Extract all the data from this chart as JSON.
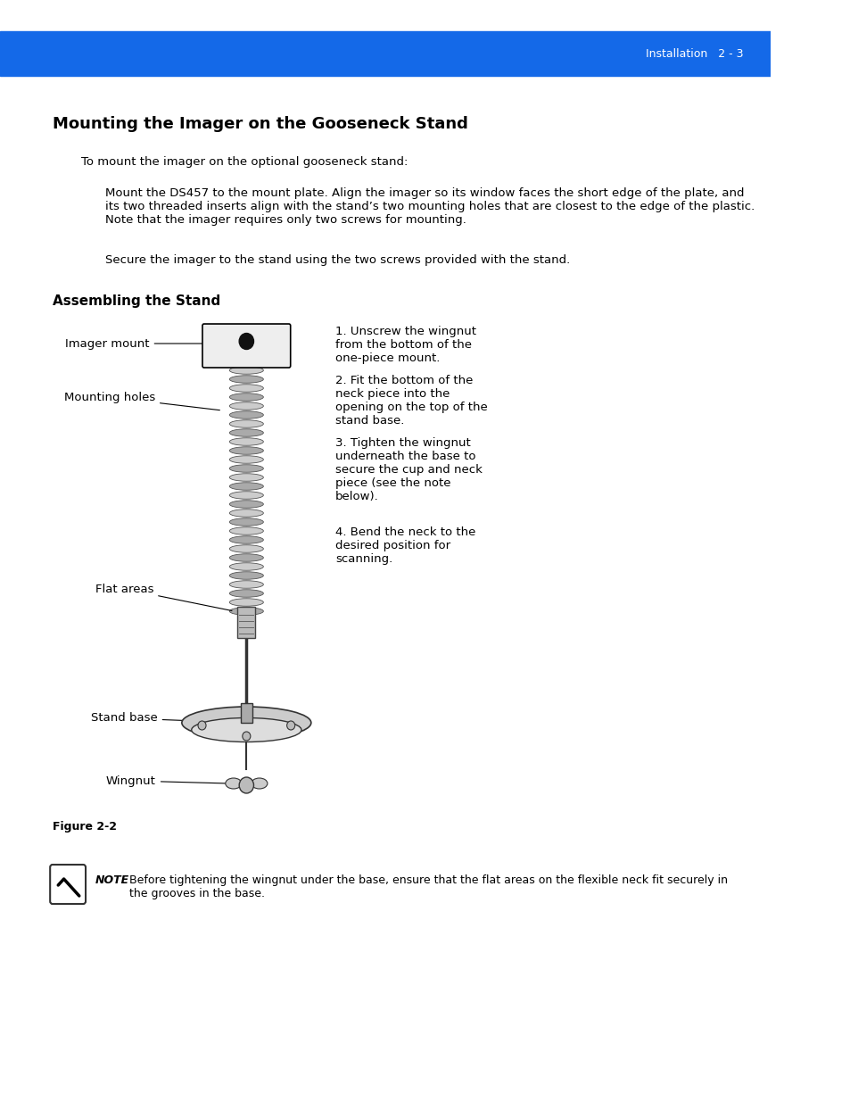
{
  "header_bar_color": "#1469E8",
  "header_text": "Installation   2 - 3",
  "header_text_color": "#FFFFFF",
  "bg_color": "#FFFFFF",
  "title": "Mounting the Imager on the Gooseneck Stand",
  "body_text_1": "To mount the imager on the optional gooseneck stand:",
  "body_text_2": "Mount the DS457 to the mount plate. Align the imager so its window faces the short edge of the plate, and\nits two threaded inserts align with the stand’s two mounting holes that are closest to the edge of the plastic.\nNote that the imager requires only two screws for mounting.",
  "body_text_3": "Secure the imager to the stand using the two screws provided with the stand.",
  "subtitle": "Assembling the Stand",
  "diagram_labels": [
    "Imager mount",
    "Mounting holes",
    "Flat areas",
    "Stand base",
    "Wingnut"
  ],
  "diagram_instructions": [
    "1. Unscrew the wingnut\nfrom the bottom of the\none-piece mount.",
    "2. Fit the bottom of the\nneck piece into the\nopening on the top of the\nstand base.",
    "3. Tighten the wingnut\nunderneath the base to\nsecure the cup and neck\npiece (see the note\nbelow).",
    "4. Bend the neck to the\ndesired position for\nscanning."
  ],
  "figure_caption": "Figure 2-2",
  "note_bold": "NOTE",
  "note_text": "Before tightening the wingnut under the base, ensure that the flat areas on the flexible neck fit securely in\nthe grooves in the base.",
  "text_color": "#000000",
  "font_size_title": 13,
  "font_size_body": 9.5,
  "font_size_header": 9,
  "font_size_subtitle": 11,
  "font_size_caption": 9,
  "font_size_note": 9
}
